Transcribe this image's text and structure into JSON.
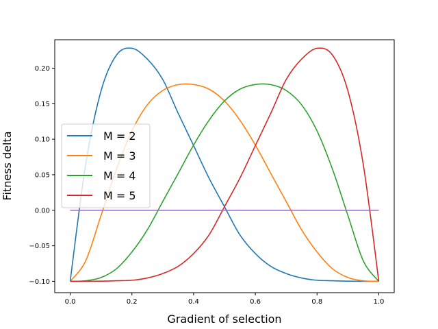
{
  "chart_data": {
    "type": "line",
    "title": "",
    "xlabel": "Gradient of selection",
    "ylabel": "Fitness delta",
    "xlim": [
      -0.05,
      1.05
    ],
    "ylim": [
      -0.116,
      0.24
    ],
    "grid": false,
    "legend_position": "center-left",
    "x_ticks": [
      0.0,
      0.2,
      0.4,
      0.6,
      0.8,
      1.0
    ],
    "x_tick_labels": [
      "0.0",
      "0.2",
      "0.4",
      "0.6",
      "0.8",
      "1.0"
    ],
    "y_ticks": [
      -0.1,
      -0.05,
      0.0,
      0.05,
      0.1,
      0.15,
      0.2
    ],
    "y_tick_labels": [
      "−0.10",
      "−0.05",
      "0.00",
      "0.05",
      "0.10",
      "0.15",
      "0.20"
    ],
    "x": [
      0.0,
      0.05,
      0.1,
      0.15,
      0.2,
      0.25,
      0.3,
      0.35,
      0.4,
      0.45,
      0.5,
      0.55,
      0.6,
      0.65,
      0.7,
      0.75,
      0.8,
      0.85,
      0.9,
      0.95,
      1.0
    ],
    "series": [
      {
        "name": "M = 2",
        "color": "#1f77b4",
        "values": [
          -0.1,
          0.0638,
          0.168,
          0.2184,
          0.228,
          0.2128,
          0.184,
          0.1365,
          0.091,
          0.0452,
          0.005,
          -0.0347,
          -0.061,
          -0.0789,
          -0.0891,
          -0.0953,
          -0.0985,
          -0.0992,
          -0.0998,
          -0.1,
          -0.1
        ]
      },
      {
        "name": "M = 3",
        "color": "#ff7f0e",
        "values": [
          -0.1,
          -0.0714,
          -0.0073,
          0.0578,
          0.1116,
          0.1484,
          0.1686,
          0.1768,
          0.177,
          0.1704,
          0.1538,
          0.1267,
          0.0918,
          0.0519,
          0.0123,
          -0.0275,
          -0.0587,
          -0.0823,
          -0.0947,
          -0.0993,
          -0.1
        ]
      },
      {
        "name": "M = 4",
        "color": "#2ca02c",
        "values": [
          -0.1,
          -0.0993,
          -0.0947,
          -0.0823,
          -0.0587,
          -0.0275,
          0.0123,
          0.0519,
          0.0918,
          0.1267,
          0.1538,
          0.1704,
          0.177,
          0.1768,
          0.1686,
          0.1484,
          0.1116,
          0.0578,
          -0.0073,
          -0.0714,
          -0.1
        ]
      },
      {
        "name": "M = 5",
        "color": "#d62728",
        "values": [
          -0.1,
          -0.1,
          -0.0998,
          -0.0992,
          -0.0985,
          -0.0953,
          -0.0891,
          -0.0789,
          -0.061,
          -0.0347,
          0.005,
          0.0452,
          0.091,
          0.1365,
          0.184,
          0.2128,
          0.228,
          0.2184,
          0.168,
          0.0638,
          -0.1
        ]
      },
      {
        "name": "",
        "color": "#9467bd",
        "values": [
          0.0,
          0.0,
          0.0,
          0.0,
          0.0,
          0.0,
          0.0,
          0.0,
          0.0,
          0.0,
          0.0,
          0.0,
          0.0,
          0.0,
          0.0,
          0.0,
          0.0,
          0.0,
          0.0,
          0.0,
          0.0
        ]
      }
    ]
  }
}
